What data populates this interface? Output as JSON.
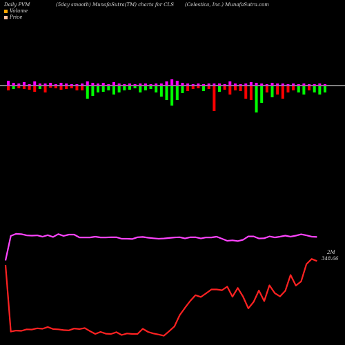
{
  "header": {
    "left": "Daily PVM",
    "middle": "(5day smooth) MunafaSutra(TM) charts for CLS",
    "right": "(Celestica, Inc.) MunafaSutra.com"
  },
  "legend": {
    "volume_label": "Volume",
    "price_label": "Price",
    "volume_color": "#ffa500",
    "price_color": "#ffc0a0"
  },
  "colors": {
    "volume_up": "#ff00ff",
    "volume_down_red": "#ff0000",
    "volume_down_green": "#00ff00",
    "volume_line": "#ff44ff",
    "price_line": "#ff2222",
    "baseline": "#ffffff"
  },
  "chart_data": {
    "type": "bar",
    "bars": [
      {
        "up": 7,
        "down": 6,
        "color": "red"
      },
      {
        "up": 4,
        "down": 4,
        "color": "green"
      },
      {
        "up": 3,
        "down": 3,
        "color": "red"
      },
      {
        "up": 5,
        "down": 4,
        "color": "red"
      },
      {
        "up": 2,
        "down": 5,
        "color": "red"
      },
      {
        "up": 6,
        "down": 8,
        "color": "red"
      },
      {
        "up": 3,
        "down": 4,
        "color": "green"
      },
      {
        "up": 3,
        "down": 9,
        "color": "red"
      },
      {
        "up": 4,
        "down": 2,
        "color": "red"
      },
      {
        "up": 2,
        "down": 3,
        "color": "red"
      },
      {
        "up": 4,
        "down": 5,
        "color": "red"
      },
      {
        "up": 3,
        "down": 4,
        "color": "red"
      },
      {
        "up": 2,
        "down": 3,
        "color": "red"
      },
      {
        "up": 2,
        "down": 6,
        "color": "red"
      },
      {
        "up": 3,
        "down": 6,
        "color": "red"
      },
      {
        "up": 6,
        "down": 18,
        "color": "green"
      },
      {
        "up": 4,
        "down": 14,
        "color": "green"
      },
      {
        "up": 3,
        "down": 9,
        "color": "green"
      },
      {
        "up": 4,
        "down": 8,
        "color": "green"
      },
      {
        "up": 2,
        "down": 6,
        "color": "green"
      },
      {
        "up": 5,
        "down": 12,
        "color": "green"
      },
      {
        "up": 3,
        "down": 9,
        "color": "green"
      },
      {
        "up": 2,
        "down": 6,
        "color": "green"
      },
      {
        "up": 3,
        "down": 5,
        "color": "green"
      },
      {
        "up": 2,
        "down": 3,
        "color": "green"
      },
      {
        "up": 3,
        "down": 9,
        "color": "green"
      },
      {
        "up": 3,
        "down": 6,
        "color": "green"
      },
      {
        "up": 2,
        "down": 4,
        "color": "green"
      },
      {
        "up": 3,
        "down": 9,
        "color": "green"
      },
      {
        "up": 3,
        "down": 15,
        "color": "green"
      },
      {
        "up": 6,
        "down": 20,
        "color": "green"
      },
      {
        "up": 9,
        "down": 28,
        "color": "green"
      },
      {
        "up": 7,
        "down": 20,
        "color": "green"
      },
      {
        "up": 4,
        "down": 10,
        "color": "green"
      },
      {
        "up": 3,
        "down": 7,
        "color": "red"
      },
      {
        "up": 2,
        "down": 4,
        "color": "red"
      },
      {
        "up": 3,
        "down": 3,
        "color": "red"
      },
      {
        "up": 2,
        "down": 7,
        "color": "green"
      },
      {
        "up": 3,
        "down": 4,
        "color": "red"
      },
      {
        "up": 3,
        "down": 36,
        "color": "red"
      },
      {
        "up": 3,
        "down": 8,
        "color": "green"
      },
      {
        "up": 2,
        "down": 5,
        "color": "red"
      },
      {
        "up": 6,
        "down": 12,
        "color": "red"
      },
      {
        "up": 3,
        "down": 6,
        "color": "red"
      },
      {
        "up": 2,
        "down": 7,
        "color": "red"
      },
      {
        "up": 3,
        "down": 18,
        "color": "red"
      },
      {
        "up": 5,
        "down": 20,
        "color": "red"
      },
      {
        "up": 4,
        "down": 38,
        "color": "green"
      },
      {
        "up": 3,
        "down": 24,
        "color": "green"
      },
      {
        "up": 2,
        "down": 9,
        "color": "red"
      },
      {
        "up": 4,
        "down": 16,
        "color": "green"
      },
      {
        "up": 3,
        "down": 12,
        "color": "red"
      },
      {
        "up": 3,
        "down": 18,
        "color": "red"
      },
      {
        "up": 2,
        "down": 9,
        "color": "red"
      },
      {
        "up": 3,
        "down": 6,
        "color": "red"
      },
      {
        "up": 2,
        "down": 9,
        "color": "green"
      },
      {
        "up": 3,
        "down": 12,
        "color": "green"
      },
      {
        "up": 2,
        "down": 6,
        "color": "red"
      },
      {
        "up": 2,
        "down": 9,
        "color": "green"
      },
      {
        "up": 3,
        "down": 12,
        "color": "green"
      },
      {
        "up": 2,
        "down": 9,
        "color": "green"
      }
    ],
    "volume_line": [
      300,
      395,
      403,
      402,
      397,
      396,
      397,
      392,
      398,
      391,
      402,
      395,
      400,
      400,
      389,
      389,
      389,
      392,
      389,
      389,
      390,
      390,
      384,
      384,
      383,
      390,
      391,
      388,
      386,
      384,
      385,
      387,
      389,
      390,
      385,
      390,
      390,
      385,
      389,
      389,
      392,
      384,
      376,
      378,
      375,
      380,
      393,
      393,
      385,
      386,
      393,
      389,
      392,
      396,
      392,
      396,
      401,
      397,
      392,
      391
    ],
    "price_line": [
      283,
      25,
      29,
      28,
      34,
      33,
      38,
      36,
      43,
      35,
      34,
      31,
      30,
      37,
      35,
      39,
      27,
      16,
      24,
      17,
      16,
      23,
      12,
      18,
      16,
      16,
      36,
      24,
      18,
      14,
      9,
      27,
      45,
      89,
      117,
      144,
      166,
      159,
      173,
      188,
      188,
      185,
      199,
      160,
      194,
      160,
      115,
      140,
      184,
      143,
      204,
      174,
      161,
      183,
      244,
      203,
      219,
      286,
      306,
      298
    ],
    "annotations": {
      "volume_line_end": "2M",
      "price_line_end": "348.66"
    }
  }
}
